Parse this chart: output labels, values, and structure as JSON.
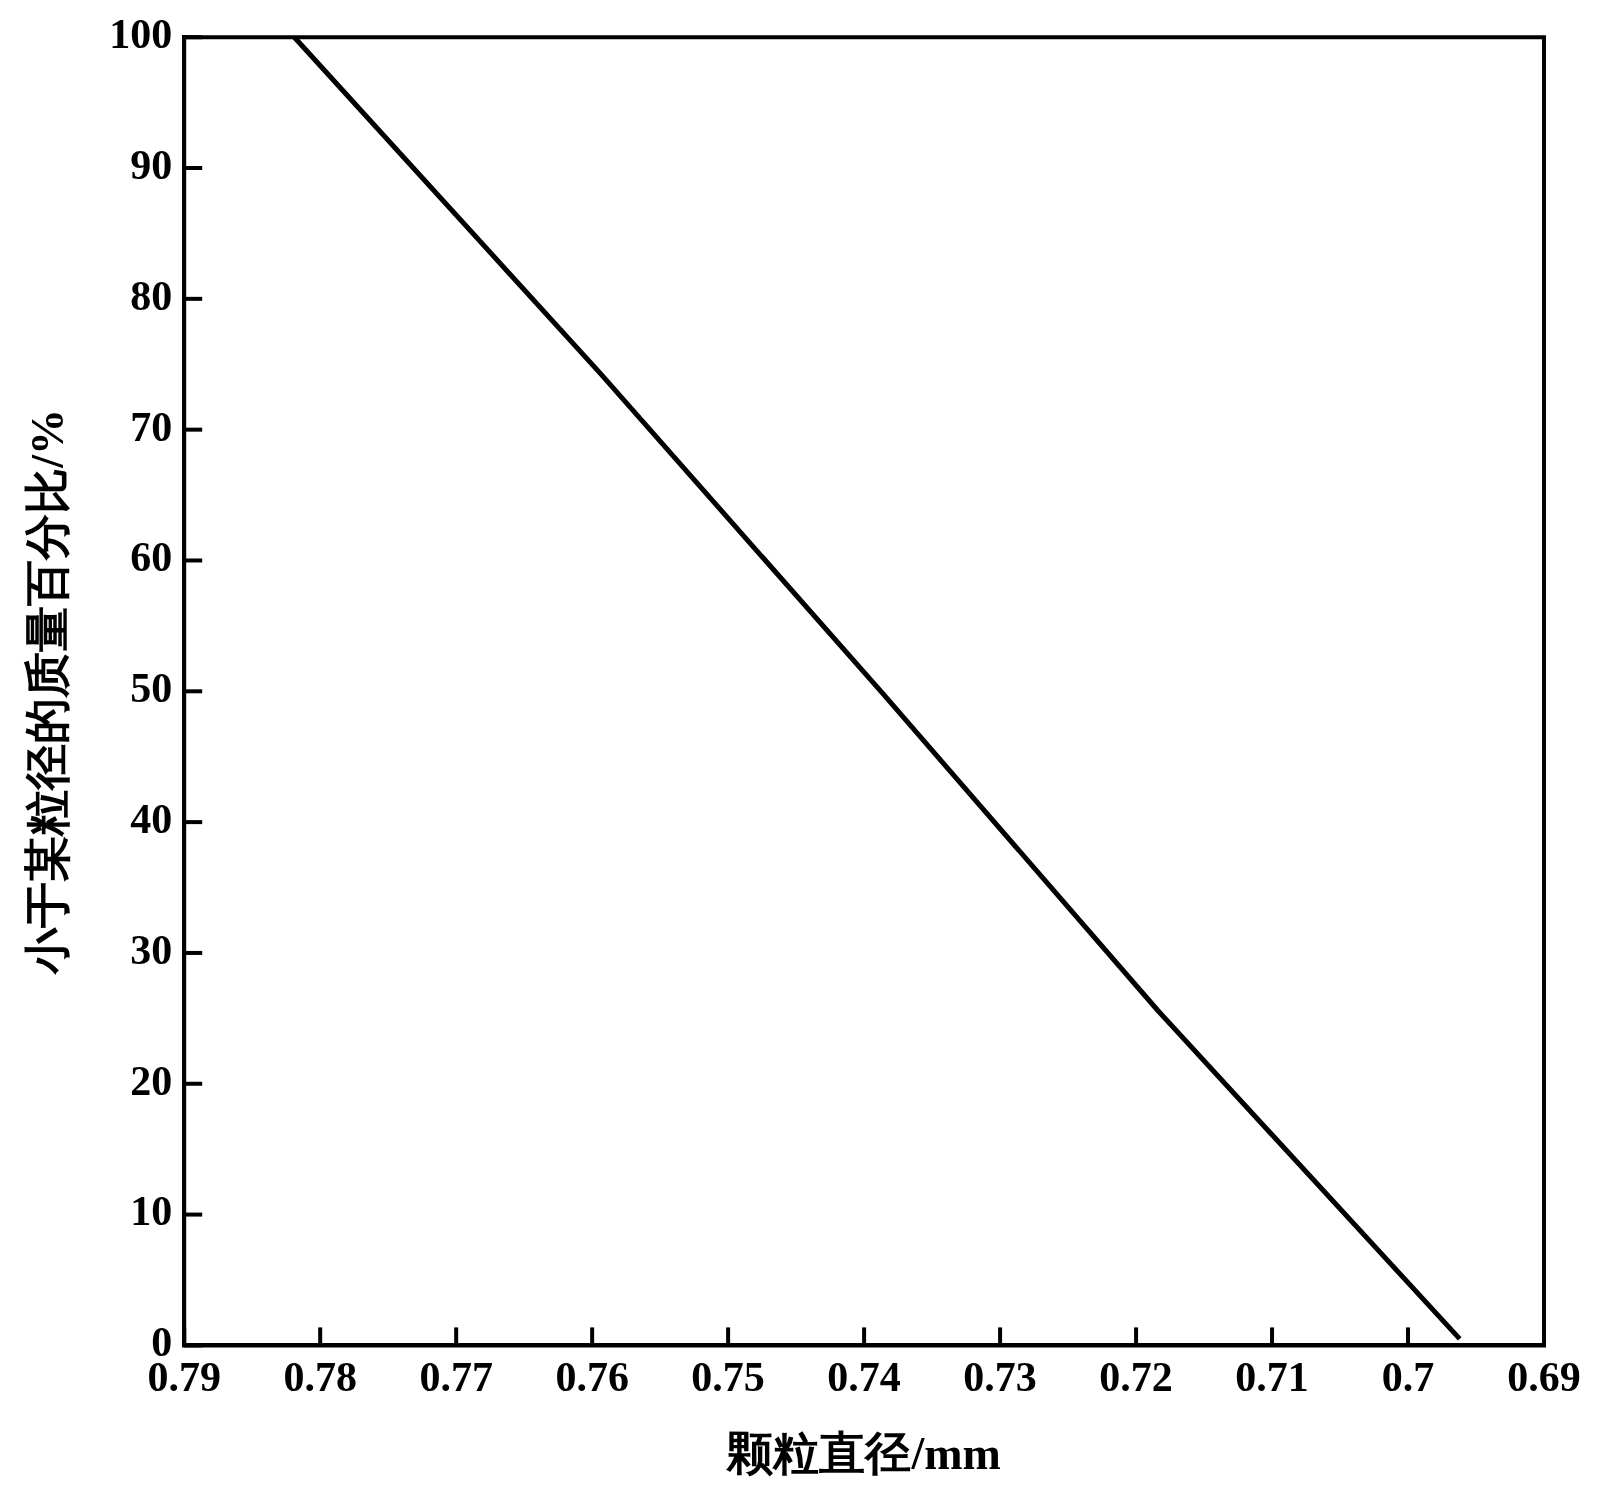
{
  "chart_data": {
    "type": "line",
    "xlabel": "颗粒直径/mm",
    "ylabel": "小于某粒径的质量百分比/%",
    "x": [
      0.7819,
      0.7594,
      0.7386,
      0.7184,
      0.6962
    ],
    "series": [
      {
        "color": "#000000",
        "values": [
          100,
          74.3,
          49.8,
          25.6,
          0.5
        ]
      }
    ],
    "xlim": [
      0.79,
      0.69
    ],
    "xticks": [
      0.79,
      0.78,
      0.77,
      0.76,
      0.75,
      0.74,
      0.73,
      0.72,
      0.71,
      0.7,
      0.69
    ],
    "ylim": [
      0,
      100
    ],
    "yticks": [
      0,
      10,
      20,
      30,
      40,
      50,
      60,
      70,
      80,
      90,
      100
    ],
    "marker": "none",
    "line_style": "solid"
  }
}
